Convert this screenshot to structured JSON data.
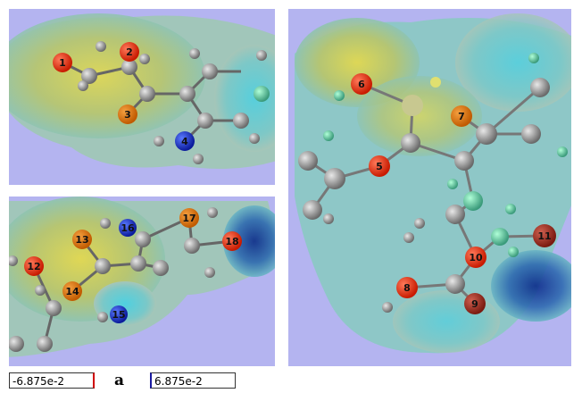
{
  "panels": [
    {
      "atoms": [
        "1",
        "2",
        "3",
        "4"
      ]
    },
    {
      "atoms": [
        "12",
        "13",
        "14",
        "15",
        "16",
        "17",
        "18"
      ]
    },
    {
      "atoms": [
        "5",
        "6",
        "7",
        "8",
        "9",
        "10",
        "11"
      ]
    }
  ],
  "legend": {
    "min": "-6.875e-2",
    "label": "a",
    "max": "6.875e-2"
  }
}
